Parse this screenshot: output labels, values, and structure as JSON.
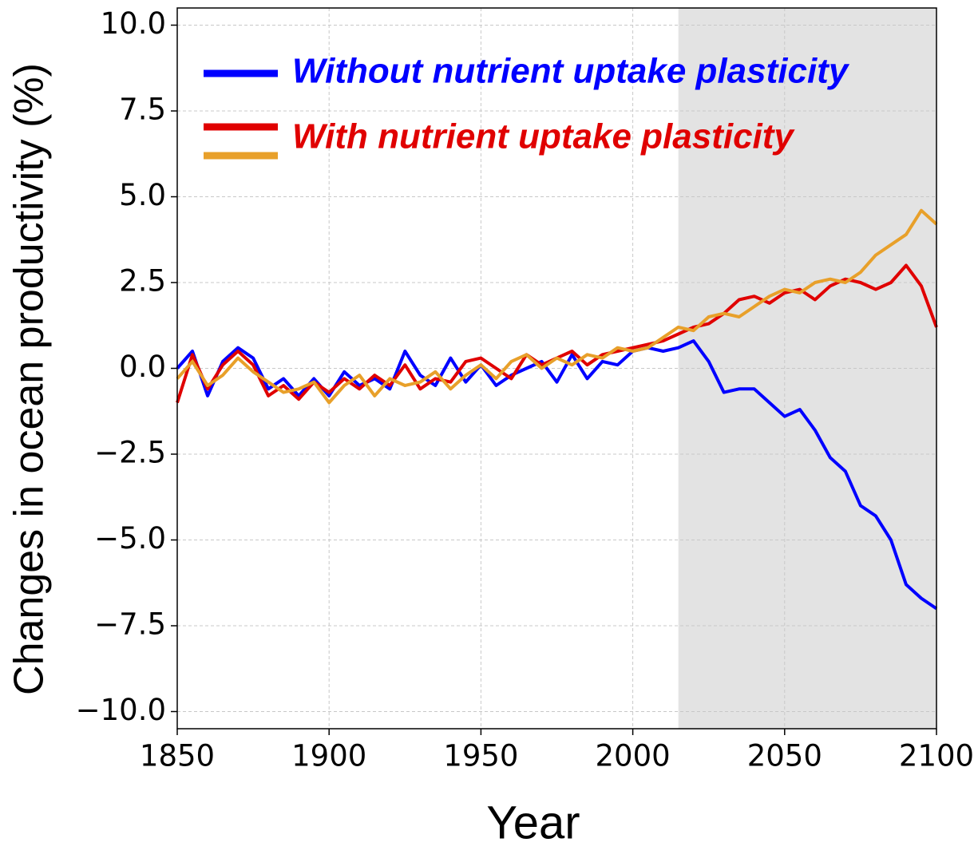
{
  "chart_data": {
    "type": "line",
    "xlabel": "Year",
    "ylabel": "Changes in ocean productivity (%)",
    "x": [
      1850,
      1855,
      1860,
      1865,
      1870,
      1875,
      1880,
      1885,
      1890,
      1895,
      1900,
      1905,
      1910,
      1915,
      1920,
      1925,
      1930,
      1935,
      1940,
      1945,
      1950,
      1955,
      1960,
      1965,
      1970,
      1975,
      1980,
      1985,
      1990,
      1995,
      2000,
      2005,
      2010,
      2015,
      2020,
      2025,
      2030,
      2035,
      2040,
      2045,
      2050,
      2055,
      2060,
      2065,
      2070,
      2075,
      2080,
      2085,
      2090,
      2095,
      2100
    ],
    "series": [
      {
        "color": "#0000ff",
        "values": [
          0.0,
          0.5,
          -0.8,
          0.2,
          0.6,
          0.3,
          -0.6,
          -0.3,
          -0.8,
          -0.3,
          -0.8,
          -0.1,
          -0.5,
          -0.3,
          -0.6,
          0.5,
          -0.2,
          -0.5,
          0.3,
          -0.4,
          0.1,
          -0.5,
          -0.2,
          0.0,
          0.2,
          -0.4,
          0.4,
          -0.3,
          0.2,
          0.1,
          0.5,
          0.6,
          0.5,
          0.6,
          0.8,
          0.2,
          -0.7,
          -0.6,
          -0.6,
          -1.0,
          -1.4,
          -1.2,
          -1.8,
          -2.6,
          -3.0,
          -4.0,
          -4.3,
          -5.0,
          -6.3,
          -6.7,
          -7.0
        ]
      },
      {
        "color": "#e00000",
        "values": [
          -1.0,
          0.4,
          -0.6,
          0.1,
          0.5,
          0.1,
          -0.8,
          -0.5,
          -0.9,
          -0.4,
          -0.7,
          -0.3,
          -0.6,
          -0.2,
          -0.5,
          0.1,
          -0.6,
          -0.3,
          -0.4,
          0.2,
          0.3,
          0.0,
          -0.3,
          0.4,
          0.1,
          0.3,
          0.5,
          0.1,
          0.4,
          0.5,
          0.6,
          0.7,
          0.8,
          1.0,
          1.2,
          1.3,
          1.6,
          2.0,
          2.1,
          1.9,
          2.2,
          2.3,
          2.0,
          2.4,
          2.6,
          2.5,
          2.3,
          2.5,
          3.0,
          2.4,
          1.2
        ]
      },
      {
        "color": "#e8a02a",
        "values": [
          -0.3,
          0.2,
          -0.5,
          -0.2,
          0.3,
          -0.1,
          -0.4,
          -0.7,
          -0.6,
          -0.4,
          -1.0,
          -0.5,
          -0.2,
          -0.8,
          -0.3,
          -0.5,
          -0.4,
          -0.1,
          -0.6,
          -0.2,
          0.1,
          -0.3,
          0.2,
          0.4,
          0.0,
          0.3,
          0.1,
          0.4,
          0.3,
          0.6,
          0.5,
          0.6,
          0.9,
          1.2,
          1.1,
          1.5,
          1.6,
          1.5,
          1.8,
          2.1,
          2.3,
          2.2,
          2.5,
          2.6,
          2.5,
          2.8,
          3.3,
          3.6,
          3.9,
          4.6,
          4.2
        ]
      }
    ],
    "legend": [
      {
        "label": "Without nutrient uptake plasticity",
        "colors": [
          "#0000ff"
        ]
      },
      {
        "label": "With nutrient uptake plasticity",
        "colors": [
          "#e00000",
          "#e8a02a"
        ]
      }
    ],
    "shaded_span": [
      2015,
      2100
    ],
    "xlim": [
      1850,
      2100
    ],
    "xticks": [
      1850,
      1900,
      1950,
      2000,
      2050,
      2100
    ],
    "ylim": [
      -10.5,
      10.5
    ],
    "yticks": [
      {
        "value": -10,
        "label": "−10.0"
      },
      {
        "value": -7.5,
        "label": "−7.5"
      },
      {
        "value": -5,
        "label": "−5.0"
      },
      {
        "value": -2.5,
        "label": "−2.5"
      },
      {
        "value": 0,
        "label": "0.0"
      },
      {
        "value": 2.5,
        "label": "2.5"
      },
      {
        "value": 5,
        "label": "5.0"
      },
      {
        "value": 7.5,
        "label": "7.5"
      },
      {
        "value": 10,
        "label": "10.0"
      }
    ],
    "grid": true
  }
}
